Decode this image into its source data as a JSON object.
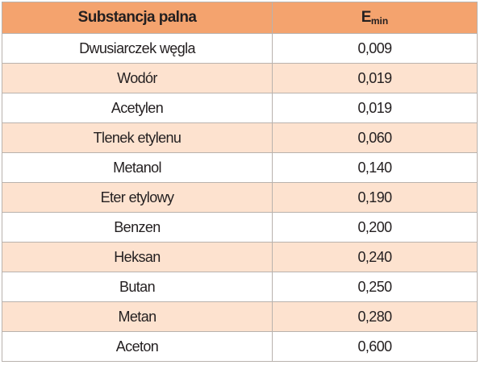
{
  "table": {
    "header": {
      "col0": "Substancja palna",
      "col1": {
        "main": "E",
        "sub": "min"
      }
    },
    "rows": [
      [
        "Dwusiarczek węgla",
        "0,009"
      ],
      [
        "Wodór",
        "0,019"
      ],
      [
        "Acetylen",
        "0,019"
      ],
      [
        "Tlenek etylenu",
        "0,060"
      ],
      [
        "Metanol",
        "0,140"
      ],
      [
        "Eter etylowy",
        "0,190"
      ],
      [
        "Benzen",
        "0,200"
      ],
      [
        "Heksan",
        "0,240"
      ],
      [
        "Butan",
        "0,250"
      ],
      [
        "Metan",
        "0,280"
      ],
      [
        "Aceton",
        "0,600"
      ]
    ]
  }
}
